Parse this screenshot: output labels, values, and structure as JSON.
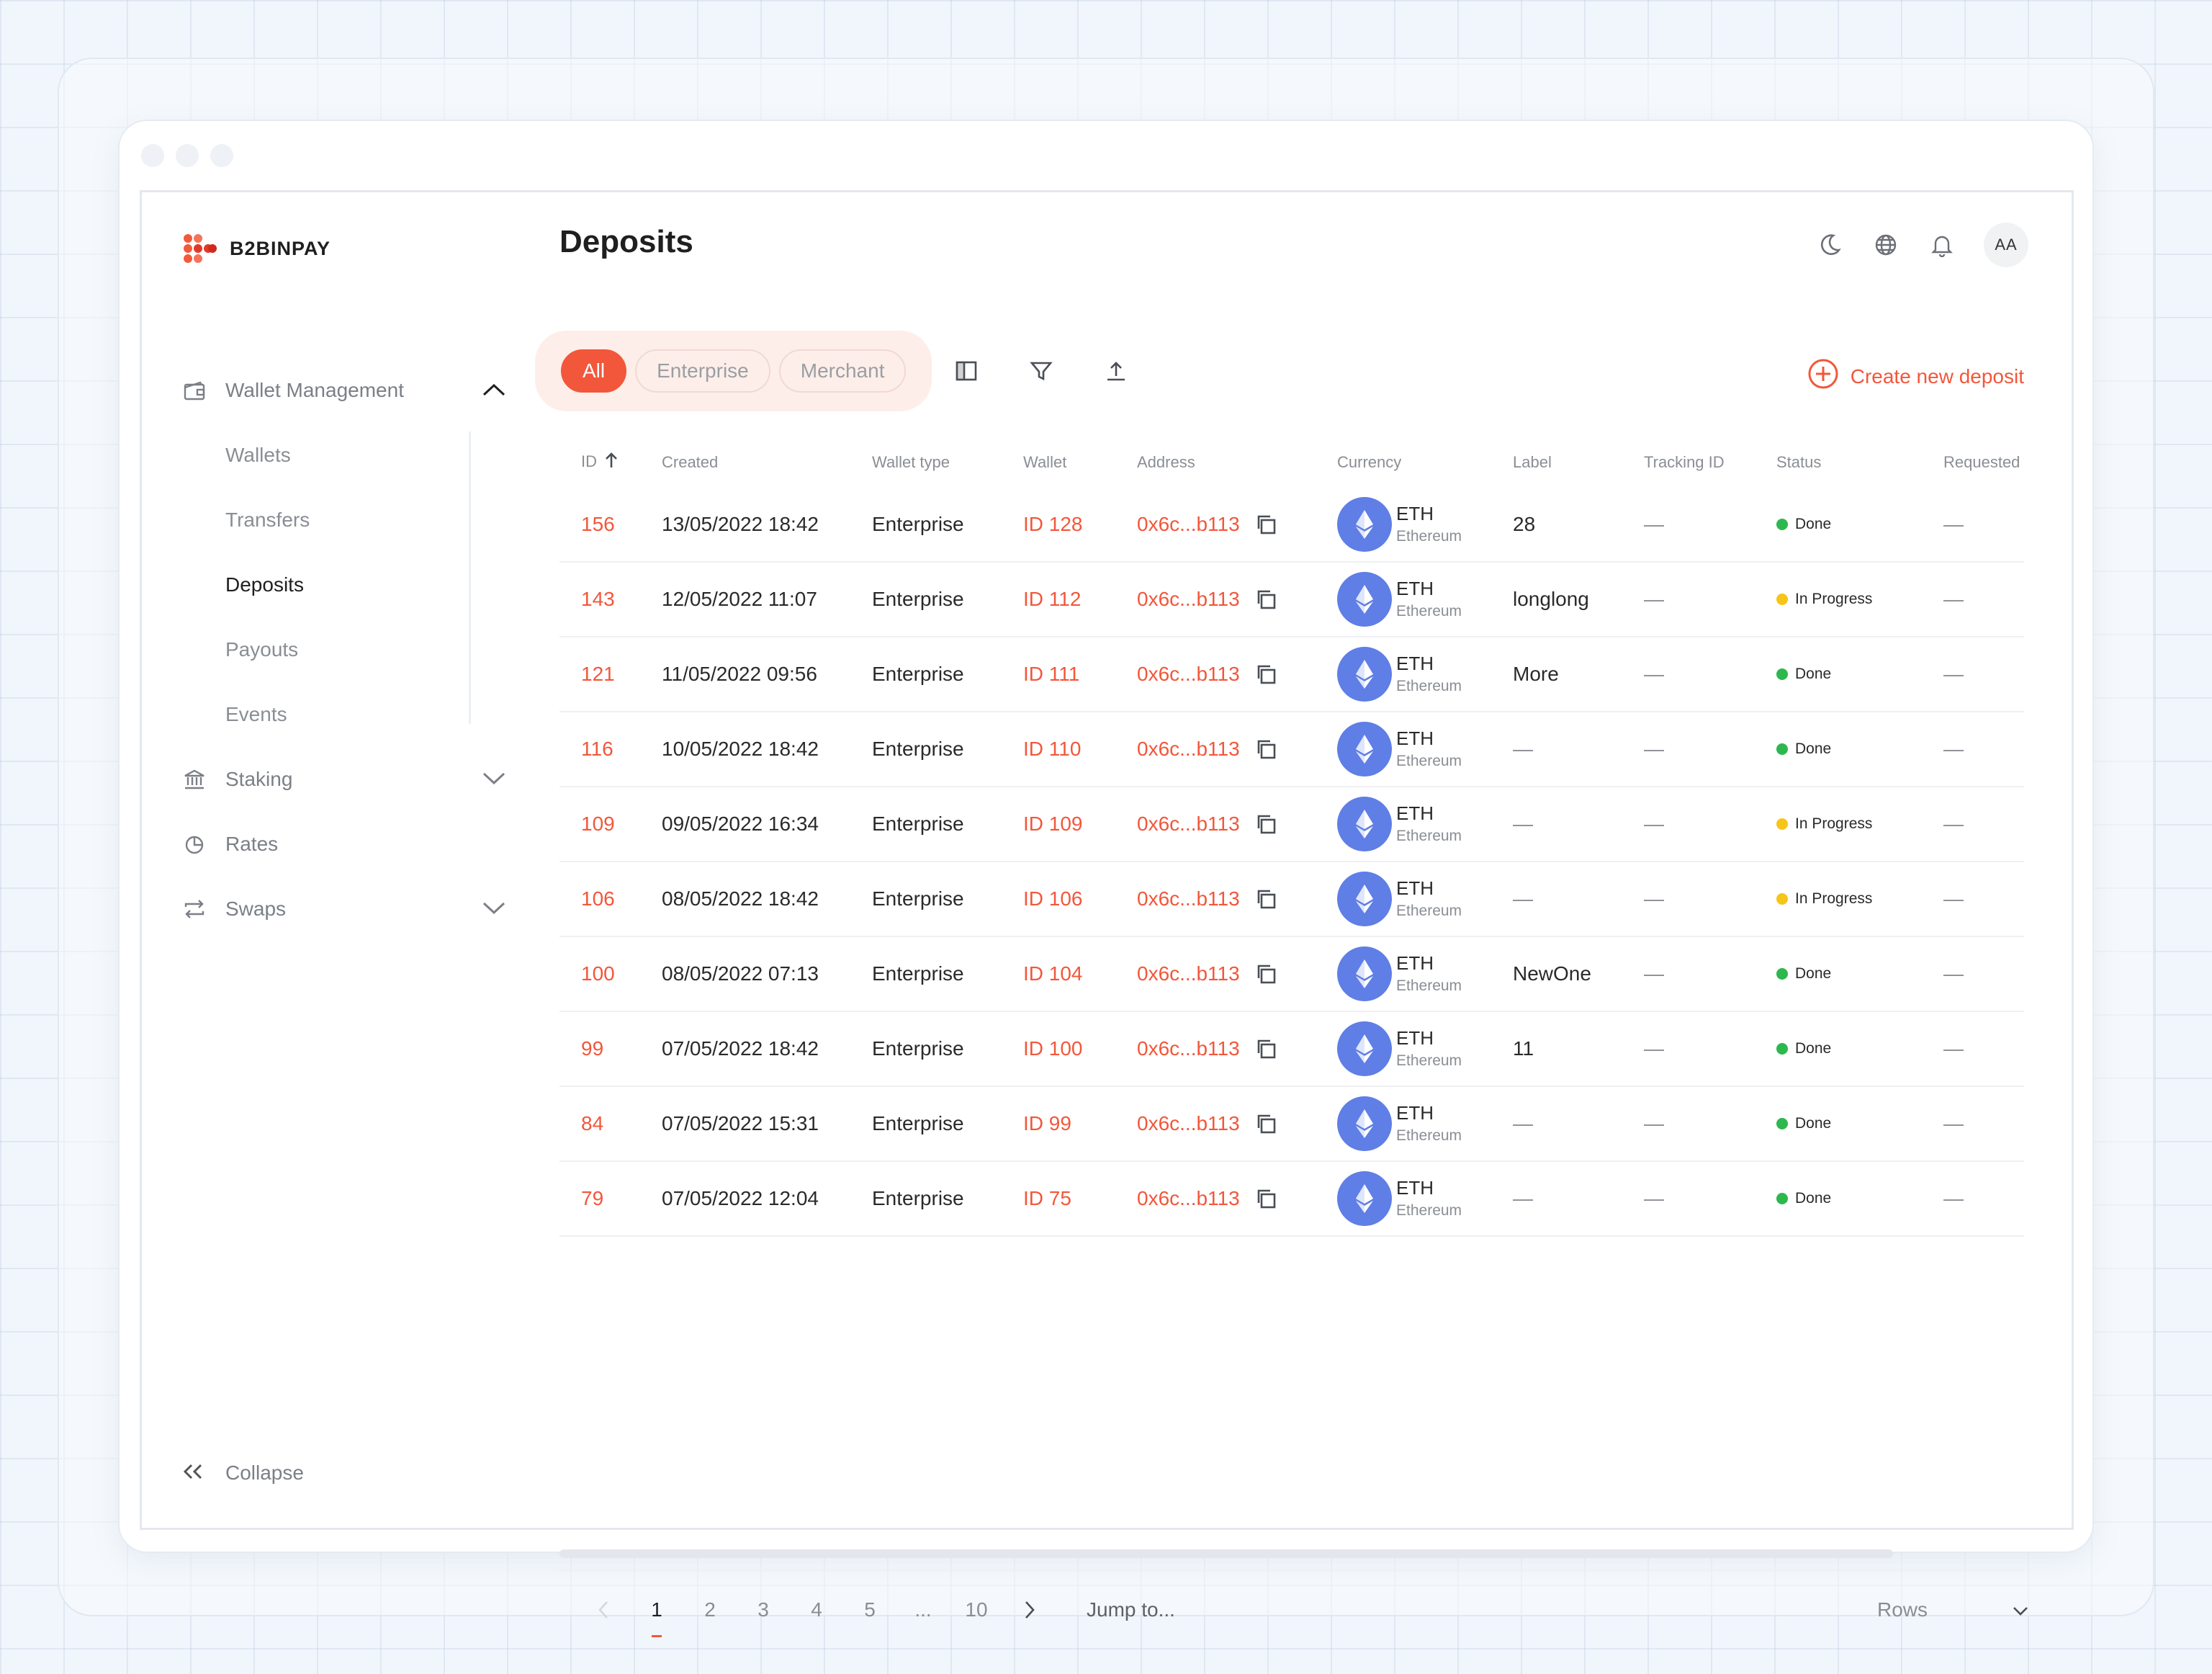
{
  "brand": {
    "name": "B2BINPAY"
  },
  "sidebar": {
    "items": [
      {
        "label": "Wallet Management",
        "icon": "wallet-icon",
        "expanded": true,
        "children": [
          "Wallets",
          "Transfers",
          "Deposits",
          "Payouts",
          "Events"
        ],
        "active_child": "Deposits"
      },
      {
        "label": "Staking",
        "icon": "bank-icon",
        "expanded": false
      },
      {
        "label": "Rates",
        "icon": "pie-chart-icon"
      },
      {
        "label": "Swaps",
        "icon": "swap-icon",
        "expanded": false
      }
    ],
    "collapse_label": "Collapse"
  },
  "header": {
    "title": "Deposits",
    "icons": [
      "moon-icon",
      "globe-icon",
      "bell-icon"
    ],
    "avatar_initials": "AA"
  },
  "filters": {
    "tabs": [
      "All",
      "Enterprise",
      "Merchant"
    ],
    "active": "All",
    "tools": [
      "columns-icon",
      "filter-icon",
      "export-icon"
    ]
  },
  "create_button": {
    "label": "Create new deposit"
  },
  "table": {
    "columns": [
      "ID",
      "Created",
      "Wallet type",
      "Wallet",
      "Address",
      "",
      "Currency",
      "Label",
      "Tracking ID",
      "Status",
      "Requested"
    ],
    "rows": [
      {
        "id": "156",
        "created": "13/05/2022 18:42",
        "wallet_type": "Enterprise",
        "wallet": "ID 128",
        "address": "0x6c...b113",
        "currency_code": "ETH",
        "currency_name": "Ethereum",
        "label": "28",
        "tracking_id": "—",
        "status": "Done",
        "requested": "—"
      },
      {
        "id": "143",
        "created": "12/05/2022 11:07",
        "wallet_type": "Enterprise",
        "wallet": "ID 112",
        "address": "0x6c...b113",
        "currency_code": "ETH",
        "currency_name": "Ethereum",
        "label": "longlong",
        "tracking_id": "—",
        "status": "In Progress",
        "requested": "—"
      },
      {
        "id": "121",
        "created": "11/05/2022 09:56",
        "wallet_type": "Enterprise",
        "wallet": "ID 111",
        "address": "0x6c...b113",
        "currency_code": "ETH",
        "currency_name": "Ethereum",
        "label": "More",
        "tracking_id": "—",
        "status": "Done",
        "requested": "—"
      },
      {
        "id": "116",
        "created": "10/05/2022 18:42",
        "wallet_type": "Enterprise",
        "wallet": "ID 110",
        "address": "0x6c...b113",
        "currency_code": "ETH",
        "currency_name": "Ethereum",
        "label": "—",
        "tracking_id": "—",
        "status": "Done",
        "requested": "—"
      },
      {
        "id": "109",
        "created": "09/05/2022 16:34",
        "wallet_type": "Enterprise",
        "wallet": "ID 109",
        "address": "0x6c...b113",
        "currency_code": "ETH",
        "currency_name": "Ethereum",
        "label": "—",
        "tracking_id": "—",
        "status": "In Progress",
        "requested": "—"
      },
      {
        "id": "106",
        "created": "08/05/2022 18:42",
        "wallet_type": "Enterprise",
        "wallet": "ID 106",
        "address": "0x6c...b113",
        "currency_code": "ETH",
        "currency_name": "Ethereum",
        "label": "—",
        "tracking_id": "—",
        "status": "In Progress",
        "requested": "—"
      },
      {
        "id": "100",
        "created": "08/05/2022 07:13",
        "wallet_type": "Enterprise",
        "wallet": "ID 104",
        "address": "0x6c...b113",
        "currency_code": "ETH",
        "currency_name": "Ethereum",
        "label": "NewOne",
        "tracking_id": "—",
        "status": "Done",
        "requested": "—"
      },
      {
        "id": "99",
        "created": "07/05/2022 18:42",
        "wallet_type": "Enterprise",
        "wallet": "ID 100",
        "address": "0x6c...b113",
        "currency_code": "ETH",
        "currency_name": "Ethereum",
        "label": "11",
        "tracking_id": "—",
        "status": "Done",
        "requested": "—"
      },
      {
        "id": "84",
        "created": "07/05/2022 15:31",
        "wallet_type": "Enterprise",
        "wallet": "ID 99",
        "address": "0x6c...b113",
        "currency_code": "ETH",
        "currency_name": "Ethereum",
        "label": "—",
        "tracking_id": "—",
        "status": "Done",
        "requested": "—"
      },
      {
        "id": "79",
        "created": "07/05/2022 12:04",
        "wallet_type": "Enterprise",
        "wallet": "ID 75",
        "address": "0x6c...b113",
        "currency_code": "ETH",
        "currency_name": "Ethereum",
        "label": "—",
        "tracking_id": "—",
        "status": "Done",
        "requested": "—"
      }
    ]
  },
  "status_colors": {
    "Done": "#2db84d",
    "In Progress": "#f5c518"
  },
  "accent_color": "#f2573b",
  "pagination": {
    "pages": [
      "1",
      "2",
      "3",
      "4",
      "5",
      "...",
      "10"
    ],
    "current": "1",
    "jump_label": "Jump to...",
    "rows_label": "Rows"
  }
}
